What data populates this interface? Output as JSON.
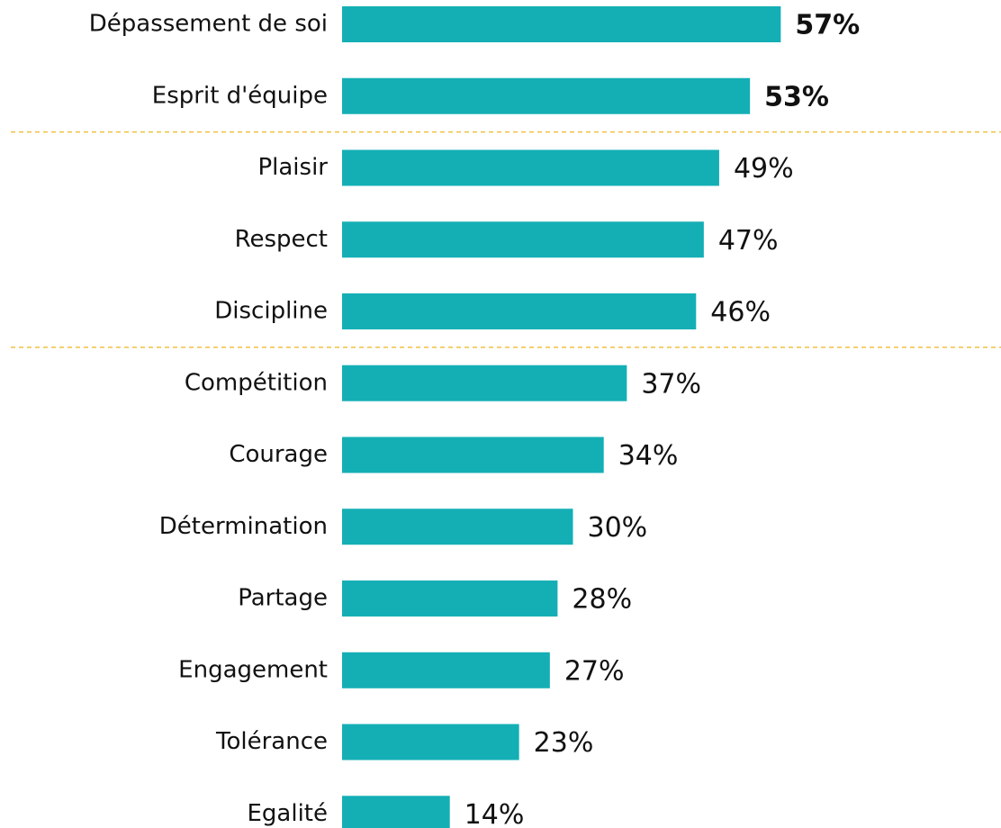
{
  "chart_data": {
    "type": "bar",
    "orientation": "horizontal",
    "color": "#14afb5",
    "categories": [
      "Dépassement de soi",
      "Esprit d'équipe",
      "Plaisir",
      "Respect",
      "Discipline",
      "Compétition",
      "Courage",
      "Détermination",
      "Partage",
      "Engagement",
      "Tolérance",
      "Egalité"
    ],
    "values": [
      57,
      53,
      49,
      47,
      46,
      37,
      34,
      30,
      28,
      27,
      23,
      14
    ],
    "value_labels": [
      "57%",
      "53%",
      "49%",
      "47%",
      "46%",
      "37%",
      "34%",
      "30%",
      "28%",
      "27%",
      "23%",
      "14%"
    ]
  }
}
